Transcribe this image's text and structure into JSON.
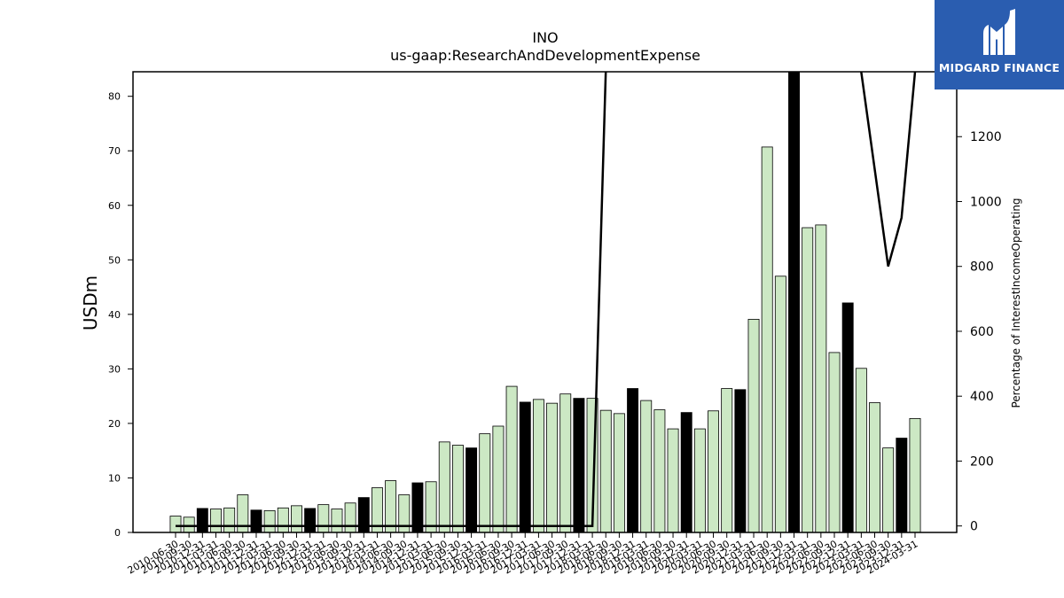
{
  "brand": {
    "name": "MIDGARD FINANCE",
    "color": "#2a5db0"
  },
  "chart_data": {
    "type": "bar",
    "title": "INO",
    "subtitle": "us-gaap:ResearchAndDevelopmentExpense",
    "ylabel": "USDm",
    "y2label": "Percentage of InterestIncomeOperating",
    "ylim": [
      0,
      84.5
    ],
    "y2lim": [
      -20,
      1400
    ],
    "yticks": [
      0,
      10,
      20,
      30,
      40,
      50,
      60,
      70,
      80
    ],
    "y2ticks": [
      0,
      200,
      400,
      600,
      800,
      1000,
      1200
    ],
    "bar_colors": {
      "quarter": "#cce8c4",
      "fiscal_year_end": "#000000"
    },
    "categories": [
      "2010-06-30",
      "2010-09-30",
      "2010-12-31",
      "2011-03-31",
      "2011-06-30",
      "2011-09-30",
      "2011-12-31",
      "2012-03-31",
      "2012-06-30",
      "2012-09-30",
      "2012-12-31",
      "2013-03-31",
      "2013-06-30",
      "2013-09-30",
      "2013-12-31",
      "2014-03-31",
      "2014-06-30",
      "2014-09-30",
      "2014-12-31",
      "2015-03-31",
      "2015-06-30",
      "2015-09-30",
      "2015-12-31",
      "2016-03-31",
      "2016-06-30",
      "2016-09-30",
      "2016-12-31",
      "2017-03-31",
      "2017-06-30",
      "2017-09-30",
      "2017-12-31",
      "2018-03-31",
      "2018-06-30",
      "2018-09-30",
      "2018-12-31",
      "2019-03-31",
      "2019-06-30",
      "2019-09-30",
      "2019-12-31",
      "2020-03-31",
      "2020-06-30",
      "2020-09-30",
      "2020-12-31",
      "2021-03-31",
      "2021-06-30",
      "2021-09-30",
      "2021-12-31",
      "2022-03-31",
      "2022-06-30",
      "2022-09-30",
      "2022-12-31",
      "2023-03-31",
      "2023-06-30",
      "2023-09-30",
      "2023-12-31",
      "2024-03-31"
    ],
    "values": [
      3.0,
      2.8,
      4.4,
      4.3,
      4.5,
      6.9,
      4.1,
      4.0,
      4.5,
      4.9,
      4.4,
      5.1,
      4.3,
      5.4,
      6.4,
      8.2,
      9.5,
      6.9,
      9.1,
      9.3,
      16.6,
      16.0,
      15.5,
      18.1,
      19.5,
      26.8,
      23.9,
      24.4,
      23.7,
      25.4,
      24.6,
      24.6,
      22.4,
      21.8,
      26.4,
      24.2,
      22.5,
      19.0,
      22.0,
      19.0,
      22.3,
      26.4,
      26.2,
      39.1,
      70.7,
      47.0,
      84.5,
      55.9,
      56.4,
      33.0,
      42.1,
      30.1,
      23.8,
      15.5,
      17.3,
      20.9
    ],
    "fiscal_year_end": [
      false,
      false,
      true,
      false,
      false,
      false,
      true,
      false,
      false,
      false,
      true,
      false,
      false,
      false,
      true,
      false,
      false,
      false,
      true,
      false,
      false,
      false,
      true,
      false,
      false,
      false,
      true,
      false,
      false,
      false,
      true,
      false,
      false,
      false,
      true,
      false,
      false,
      false,
      true,
      false,
      false,
      false,
      true,
      false,
      false,
      false,
      true,
      false,
      false,
      false,
      true,
      false,
      false,
      false,
      true,
      false
    ],
    "line": {
      "name": "Percentage of InterestIncomeOperating",
      "x_start": "2010-06-30",
      "values": [
        0,
        0,
        0,
        0,
        0,
        0,
        0,
        0,
        0,
        0,
        0,
        0,
        0,
        0,
        0,
        0,
        0,
        0,
        0,
        0,
        0,
        0,
        0,
        0,
        0,
        0,
        0,
        0,
        0,
        0,
        0,
        0,
        1400,
        null,
        null,
        null,
        null,
        null,
        null,
        null,
        null,
        null,
        null,
        null,
        null,
        null,
        null,
        null,
        null,
        null,
        null,
        1400,
        1100,
        800,
        950,
        1400
      ]
    }
  }
}
